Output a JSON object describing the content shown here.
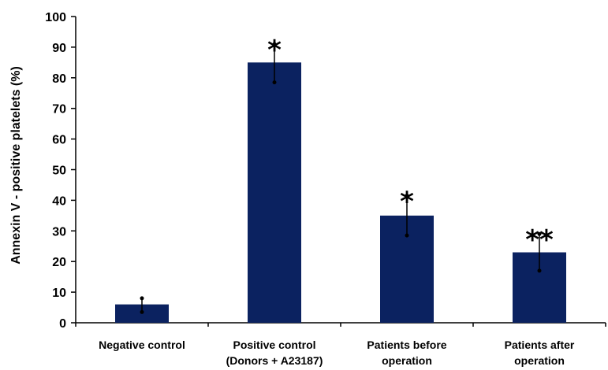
{
  "chart_data": {
    "type": "bar",
    "categories": [
      [
        "Negative control"
      ],
      [
        "Positive control",
        "(Donors + A23187)"
      ],
      [
        "Patients before",
        "operation"
      ],
      [
        "Patients after",
        "operation"
      ]
    ],
    "values": [
      6,
      85,
      35,
      23
    ],
    "error_upper": [
      8,
      91,
      41.5,
      29
    ],
    "error_lower": [
      3.5,
      78.5,
      28.5,
      17
    ],
    "significance": [
      "",
      "*",
      "*",
      "**"
    ],
    "ylabel": "Annexin V - positive platelets  (%)",
    "ylim": [
      0,
      100
    ],
    "yticks": [
      0,
      10,
      20,
      30,
      40,
      50,
      60,
      70,
      80,
      90,
      100
    ],
    "bar_color": "#0b2260",
    "grid": false
  }
}
